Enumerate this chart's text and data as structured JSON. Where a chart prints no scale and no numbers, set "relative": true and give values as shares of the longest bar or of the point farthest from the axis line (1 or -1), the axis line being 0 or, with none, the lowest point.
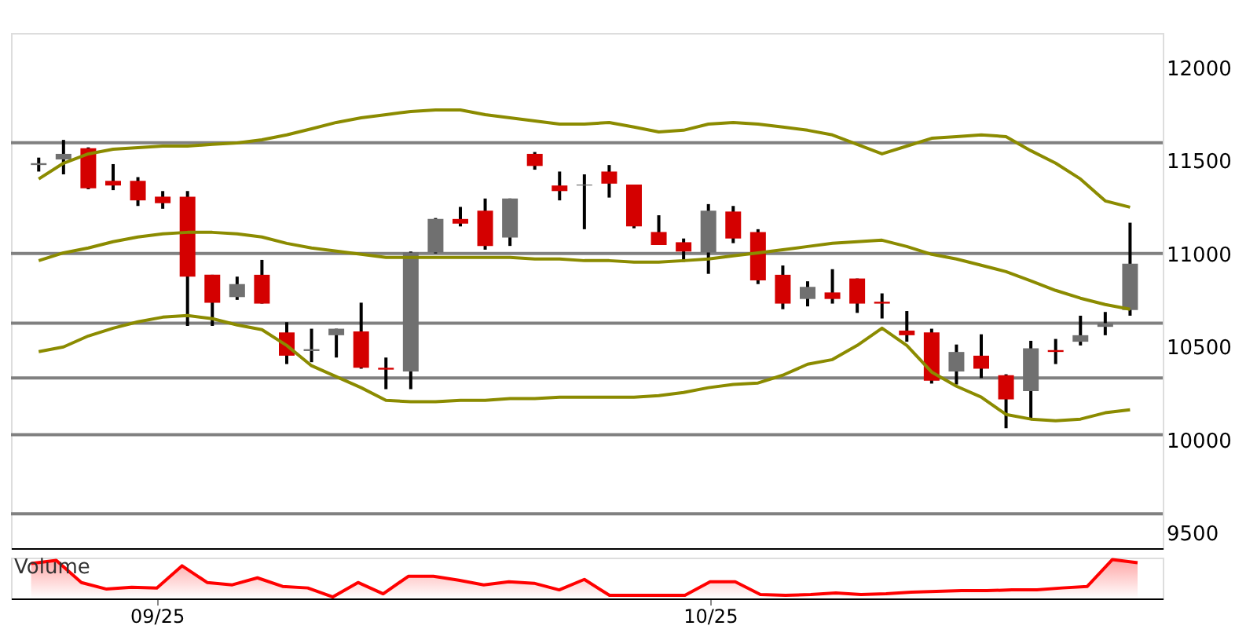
{
  "chart_data": [
    {
      "type": "candlestick",
      "categories": [
        null,
        null,
        null,
        null,
        null,
        null,
        null,
        null,
        null,
        null,
        null,
        null,
        null,
        null,
        null,
        null,
        null,
        null,
        null,
        null,
        null,
        null,
        null,
        null,
        null,
        null,
        null,
        null,
        null,
        null,
        null,
        null,
        null,
        null,
        null,
        null,
        null,
        null,
        null,
        null,
        null,
        null,
        null,
        null,
        null
      ],
      "ohlc": [
        [
          11480,
          11520,
          11445,
          11490
        ],
        [
          11510,
          11615,
          11430,
          11540
        ],
        [
          11570,
          11575,
          11350,
          11355
        ],
        [
          11395,
          11485,
          11345,
          11370
        ],
        [
          11395,
          11415,
          11260,
          11290
        ],
        [
          11310,
          11340,
          11245,
          11275
        ],
        [
          11310,
          11340,
          10615,
          10880
        ],
        [
          10890,
          10890,
          10615,
          10740
        ],
        [
          10770,
          10880,
          10755,
          10840
        ],
        [
          10890,
          10970,
          10735,
          10735
        ],
        [
          10580,
          10635,
          10410,
          10455
        ],
        [
          10480,
          10600,
          10420,
          10490
        ],
        [
          10565,
          10600,
          10445,
          10600
        ],
        [
          10585,
          10740,
          10385,
          10390
        ],
        [
          10390,
          10445,
          10275,
          10380
        ],
        [
          10370,
          11015,
          10275,
          11010
        ],
        [
          11010,
          11195,
          11005,
          11190
        ],
        [
          11190,
          11255,
          11150,
          11165
        ],
        [
          11235,
          11300,
          11025,
          11045
        ],
        [
          11090,
          11300,
          11045,
          11300
        ],
        [
          11540,
          11550,
          11455,
          11475
        ],
        [
          11370,
          11445,
          11290,
          11340
        ],
        [
          11370,
          11430,
          11135,
          11375
        ],
        [
          11445,
          11480,
          11305,
          11380
        ],
        [
          11375,
          11375,
          11140,
          11150
        ],
        [
          11120,
          11210,
          11050,
          11050
        ],
        [
          11065,
          11085,
          10960,
          11015
        ],
        [
          11010,
          11270,
          10895,
          11235
        ],
        [
          11230,
          11260,
          11060,
          11085
        ],
        [
          11120,
          11135,
          10840,
          10860
        ],
        [
          10890,
          10940,
          10705,
          10735
        ],
        [
          10760,
          10855,
          10720,
          10825
        ],
        [
          10795,
          10920,
          10735,
          10760
        ],
        [
          10870,
          10870,
          10685,
          10735
        ],
        [
          10745,
          10790,
          10655,
          10735
        ],
        [
          10590,
          10695,
          10530,
          10565
        ],
        [
          10580,
          10600,
          10305,
          10320
        ],
        [
          10370,
          10515,
          10300,
          10475
        ],
        [
          10455,
          10570,
          10335,
          10385
        ],
        [
          10350,
          10355,
          10065,
          10220
        ],
        [
          10265,
          10535,
          10120,
          10495
        ],
        [
          10485,
          10545,
          10410,
          10475
        ],
        [
          10530,
          10670,
          10510,
          10565
        ],
        [
          10610,
          10690,
          10565,
          10630
        ],
        [
          10700,
          11170,
          10670,
          10950
        ]
      ],
      "colors": [
        "#707070",
        "#707070",
        "#d40000",
        "#d40000",
        "#d40000",
        "#d40000",
        "#d40000",
        "#d40000",
        "#707070",
        "#d40000",
        "#d40000",
        "#707070",
        "#707070",
        "#d40000",
        "#d40000",
        "#707070",
        "#707070",
        "#d40000",
        "#d40000",
        "#707070",
        "#d40000",
        "#d40000",
        "#707070",
        "#d40000",
        "#d40000",
        "#d40000",
        "#d40000",
        "#707070",
        "#d40000",
        "#d40000",
        "#d40000",
        "#707070",
        "#d40000",
        "#d40000",
        "#d40000",
        "#d40000",
        "#d40000",
        "#707070",
        "#d40000",
        "#d40000",
        "#707070",
        "#d40000",
        "#707070",
        "#707070",
        "#707070"
      ],
      "series": [
        {
          "type": "line",
          "color": "#8b8b00",
          "values": [
            11405,
            11490,
            11540,
            11565,
            11574,
            11582,
            11582,
            11591,
            11599,
            11616,
            11642,
            11675,
            11709,
            11734,
            11751,
            11768,
            11776,
            11776,
            11751,
            11734,
            11717,
            11700,
            11700,
            11709,
            11684,
            11658,
            11667,
            11700,
            11709,
            11700,
            11684,
            11667,
            11642,
            11591,
            11540,
            11582,
            11624,
            11633,
            11642,
            11633,
            11557,
            11490,
            11405,
            11287,
            11253
          ]
        },
        {
          "type": "line",
          "color": "#8b8b00",
          "values": [
            10966,
            11008,
            11034,
            11068,
            11093,
            11110,
            11118,
            11118,
            11110,
            11093,
            11059,
            11034,
            11017,
            11000,
            10983,
            10983,
            10983,
            10983,
            10983,
            10983,
            10975,
            10975,
            10966,
            10966,
            10958,
            10958,
            10966,
            10975,
            10992,
            11008,
            11025,
            11042,
            11059,
            11068,
            11076,
            11042,
            11000,
            10975,
            10941,
            10907,
            10857,
            10806,
            10764,
            10730,
            10705
          ]
        },
        {
          "type": "line",
          "color": "#8b8b00",
          "values": [
            10477,
            10502,
            10561,
            10603,
            10637,
            10662,
            10671,
            10654,
            10620,
            10595,
            10510,
            10401,
            10342,
            10283,
            10215,
            10207,
            10207,
            10215,
            10215,
            10224,
            10224,
            10232,
            10232,
            10232,
            10232,
            10240,
            10257,
            10283,
            10300,
            10308,
            10350,
            10409,
            10434,
            10510,
            10603,
            10510,
            10367,
            10291,
            10232,
            10139,
            10114,
            10105,
            10114,
            10148,
            10164
          ]
        }
      ],
      "ref_lines": [
        {
          "axis": "y",
          "value": 11600,
          "color": "#808080"
        },
        {
          "axis": "y",
          "value": 11005,
          "color": "#808080"
        },
        {
          "axis": "y",
          "value": 10630,
          "color": "#808080"
        },
        {
          "axis": "y",
          "value": 10335,
          "color": "#808080"
        },
        {
          "axis": "y",
          "value": 10030,
          "color": "#808080"
        },
        {
          "axis": "y",
          "value": 9605,
          "color": "#808080"
        }
      ],
      "ylim": [
        9420,
        12190
      ],
      "yticks": [
        9500,
        10000,
        10500,
        11000,
        11500,
        12000
      ],
      "grid": false,
      "tick_labels": "y"
    },
    {
      "type": "area",
      "title": "Volume",
      "relative": true,
      "color": "#ff0000",
      "categories": [
        null,
        null,
        null,
        null,
        null,
        "09/25",
        null,
        null,
        null,
        null,
        null,
        null,
        null,
        null,
        null,
        null,
        null,
        null,
        null,
        null,
        null,
        null,
        null,
        null,
        null,
        null,
        null,
        "10/25",
        null,
        null,
        null,
        null,
        null,
        null,
        null,
        null,
        null,
        null,
        null,
        null,
        null,
        null,
        null,
        null,
        null
      ],
      "values": [
        0.9,
        0.98,
        0.41,
        0.24,
        0.29,
        0.27,
        0.84,
        0.41,
        0.35,
        0.53,
        0.31,
        0.27,
        0.04,
        0.41,
        0.12,
        0.57,
        0.57,
        0.47,
        0.35,
        0.43,
        0.39,
        0.22,
        0.49,
        0.08,
        0.08,
        0.08,
        0.08,
        0.43,
        0.43,
        0.1,
        0.08,
        0.1,
        0.14,
        0.1,
        0.12,
        0.16,
        0.18,
        0.2,
        0.2,
        0.22,
        0.22,
        0.27,
        0.31,
        1,
        0.92
      ],
      "tick_labels": "x"
    }
  ]
}
